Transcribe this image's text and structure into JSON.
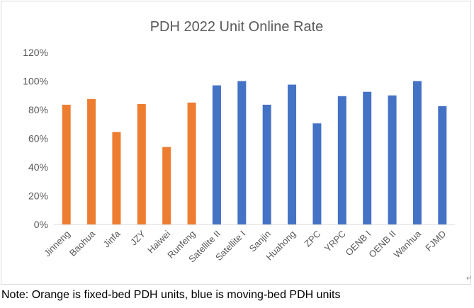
{
  "chart_data": {
    "type": "bar",
    "title": "PDH 2022 Unit Online Rate",
    "xlabel": "",
    "ylabel": "",
    "ylim": [
      0,
      120
    ],
    "yticks": [
      "0%",
      "20%",
      "40%",
      "60%",
      "80%",
      "100%",
      "120%"
    ],
    "grid": false,
    "legend": "none",
    "categories": [
      "Jinneng",
      "Baohua",
      "Jinfa",
      "JZY",
      "Haiwei",
      "Runfeng",
      "Satellite II",
      "Satellite I",
      "Sanjin",
      "Huahong",
      "ZPC",
      "YRPC",
      "OENB I",
      "OENB II",
      "Wanhua",
      "FJMD"
    ],
    "values": [
      83.5,
      87.5,
      64.5,
      84,
      54,
      85,
      97,
      100,
      83.5,
      97.5,
      70.5,
      89.5,
      92.5,
      90,
      100,
      82.5
    ],
    "bar_colors": [
      "#ED7D31",
      "#ED7D31",
      "#ED7D31",
      "#ED7D31",
      "#ED7D31",
      "#ED7D31",
      "#4472C4",
      "#4472C4",
      "#4472C4",
      "#4472C4",
      "#4472C4",
      "#4472C4",
      "#4472C4",
      "#4472C4",
      "#4472C4",
      "#4472C4"
    ]
  },
  "colors": {
    "fixed_bed": "#ED7D31",
    "moving_bed": "#4472C4"
  },
  "note": "Note: Orange is fixed-bed PDH units, blue is moving-bed PDH units",
  "note_mark": "↵"
}
